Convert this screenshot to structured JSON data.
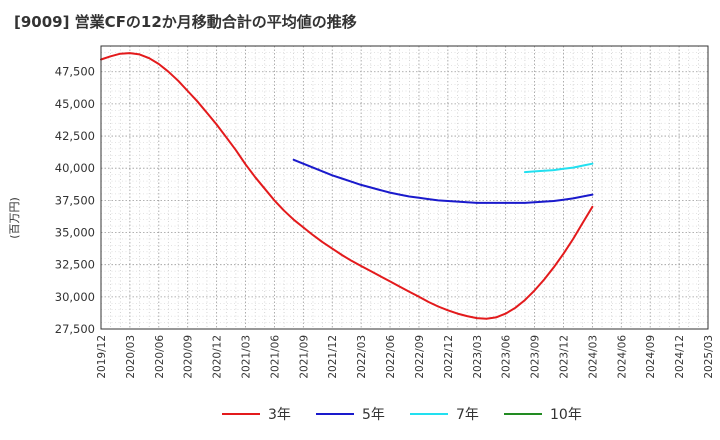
{
  "chart_data": {
    "type": "line",
    "title": "[9009]  営業CFの12か月移動合計の平均値の推移",
    "ylabel": "(百万円)",
    "xlabel": "",
    "x_ticks": [
      "2019/12",
      "2020/03",
      "2020/06",
      "2020/09",
      "2020/12",
      "2021/03",
      "2021/06",
      "2021/09",
      "2021/12",
      "2022/03",
      "2022/06",
      "2022/09",
      "2022/12",
      "2023/03",
      "2023/06",
      "2023/09",
      "2023/12",
      "2024/03",
      "2024/06",
      "2024/09",
      "2024/12",
      "2025/03"
    ],
    "y_ticks": [
      "27,500",
      "30,000",
      "32,500",
      "35,000",
      "37,500",
      "40,000",
      "42,500",
      "45,000",
      "47,500"
    ],
    "ylim": [
      27500,
      49500
    ],
    "xlim": [
      "2019/12",
      "2025/03"
    ],
    "grid": true,
    "legend_position": "bottom",
    "series": [
      {
        "name": "3年",
        "color": "#e31a1c",
        "points": [
          [
            "2019/12",
            48450
          ],
          [
            "2020/01",
            48700
          ],
          [
            "2020/02",
            48900
          ],
          [
            "2020/03",
            48950
          ],
          [
            "2020/04",
            48850
          ],
          [
            "2020/05",
            48550
          ],
          [
            "2020/06",
            48100
          ],
          [
            "2020/07",
            47500
          ],
          [
            "2020/08",
            46800
          ],
          [
            "2020/09",
            46000
          ],
          [
            "2020/10",
            45200
          ],
          [
            "2020/11",
            44300
          ],
          [
            "2020/12",
            43400
          ],
          [
            "2021/01",
            42400
          ],
          [
            "2021/02",
            41400
          ],
          [
            "2021/03",
            40300
          ],
          [
            "2021/04",
            39300
          ],
          [
            "2021/05",
            38400
          ],
          [
            "2021/06",
            37500
          ],
          [
            "2021/07",
            36700
          ],
          [
            "2021/08",
            36000
          ],
          [
            "2021/09",
            35400
          ],
          [
            "2021/10",
            34800
          ],
          [
            "2021/11",
            34250
          ],
          [
            "2021/12",
            33750
          ],
          [
            "2022/01",
            33250
          ],
          [
            "2022/02",
            32800
          ],
          [
            "2022/03",
            32400
          ],
          [
            "2022/04",
            32000
          ],
          [
            "2022/05",
            31600
          ],
          [
            "2022/06",
            31200
          ],
          [
            "2022/07",
            30800
          ],
          [
            "2022/08",
            30400
          ],
          [
            "2022/09",
            30000
          ],
          [
            "2022/10",
            29600
          ],
          [
            "2022/11",
            29250
          ],
          [
            "2022/12",
            28950
          ],
          [
            "2023/01",
            28700
          ],
          [
            "2023/02",
            28500
          ],
          [
            "2023/03",
            28350
          ],
          [
            "2023/04",
            28300
          ],
          [
            "2023/05",
            28400
          ],
          [
            "2023/06",
            28700
          ],
          [
            "2023/07",
            29150
          ],
          [
            "2023/08",
            29750
          ],
          [
            "2023/09",
            30500
          ],
          [
            "2023/10",
            31350
          ],
          [
            "2023/11",
            32300
          ],
          [
            "2023/12",
            33350
          ],
          [
            "2024/01",
            34500
          ],
          [
            "2024/02",
            35750
          ],
          [
            "2024/03",
            37000
          ]
        ]
      },
      {
        "name": "5年",
        "color": "#1a1acc",
        "points": [
          [
            "2021/08",
            40650
          ],
          [
            "2021/09",
            40350
          ],
          [
            "2021/10",
            40050
          ],
          [
            "2021/11",
            39750
          ],
          [
            "2021/12",
            39450
          ],
          [
            "2022/01",
            39200
          ],
          [
            "2022/02",
            38950
          ],
          [
            "2022/03",
            38700
          ],
          [
            "2022/04",
            38500
          ],
          [
            "2022/05",
            38300
          ],
          [
            "2022/06",
            38100
          ],
          [
            "2022/07",
            37950
          ],
          [
            "2022/08",
            37800
          ],
          [
            "2022/09",
            37700
          ],
          [
            "2022/10",
            37600
          ],
          [
            "2022/11",
            37500
          ],
          [
            "2022/12",
            37450
          ],
          [
            "2023/01",
            37400
          ],
          [
            "2023/02",
            37350
          ],
          [
            "2023/03",
            37300
          ],
          [
            "2023/04",
            37300
          ],
          [
            "2023/05",
            37300
          ],
          [
            "2023/06",
            37300
          ],
          [
            "2023/07",
            37300
          ],
          [
            "2023/08",
            37300
          ],
          [
            "2023/09",
            37350
          ],
          [
            "2023/10",
            37400
          ],
          [
            "2023/11",
            37450
          ],
          [
            "2023/12",
            37550
          ],
          [
            "2024/01",
            37650
          ],
          [
            "2024/02",
            37800
          ],
          [
            "2024/03",
            37950
          ]
        ]
      },
      {
        "name": "7年",
        "color": "#22e0f0",
        "points": [
          [
            "2023/08",
            39700
          ],
          [
            "2023/09",
            39750
          ],
          [
            "2023/10",
            39800
          ],
          [
            "2023/11",
            39850
          ],
          [
            "2023/12",
            39950
          ],
          [
            "2024/01",
            40050
          ],
          [
            "2024/02",
            40200
          ],
          [
            "2024/03",
            40350
          ]
        ]
      },
      {
        "name": "10年",
        "color": "#228b22",
        "points": []
      }
    ]
  }
}
